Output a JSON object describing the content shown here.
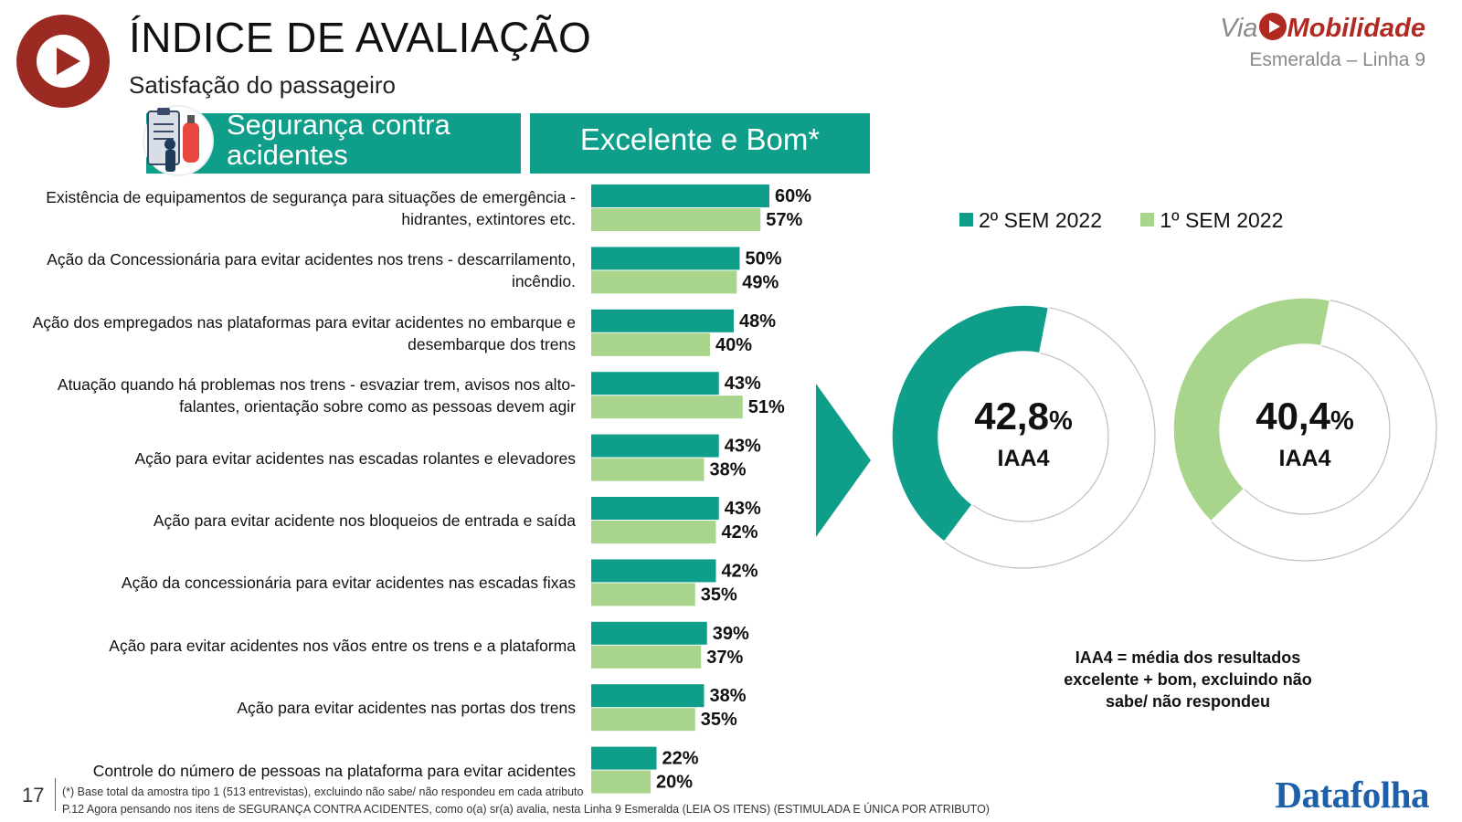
{
  "header": {
    "title": "ÍNDICE DE AVALIAÇÃO",
    "subtitle": "Satisfação do passageiro"
  },
  "brand": {
    "via": "Via",
    "mobilidade": "Mobilidade",
    "line": "Esmeralda – Linha 9"
  },
  "category": {
    "label_line1": "Segurança contra",
    "label_line2": "acidentes",
    "metric": "Excelente e Bom*"
  },
  "colors": {
    "teal": "#0f9e8a",
    "light_green": "#a8d48c",
    "brand_red": "#9b2a22",
    "datafolha_blue": "#1d5fa8"
  },
  "chart_data": [
    {
      "type": "bar",
      "orientation": "horizontal",
      "categories": [
        [
          "Existência de equipamentos de segurança para situações de emergência -",
          "hidrantes, extintores etc."
        ],
        [
          "Ação da Concessionária para evitar acidentes nos trens - descarrilamento,",
          "incêndio."
        ],
        [
          "Ação dos empregados nas plataformas para evitar acidentes no embarque e",
          "desembarque dos trens"
        ],
        [
          "Atuação quando há problemas nos trens - esvaziar trem, avisos nos alto-",
          "falantes, orientação sobre como as pessoas devem agir"
        ],
        [
          "Ação para evitar acidentes nas escadas rolantes e elevadores"
        ],
        [
          "Ação para evitar acidente nos bloqueios de entrada e saída"
        ],
        [
          "Ação da concessionária para evitar acidentes nas escadas fixas"
        ],
        [
          "Ação para evitar acidentes nos vãos entre os trens e a plataforma"
        ],
        [
          "Ação para evitar acidentes nas portas dos trens"
        ],
        [
          "Controle do número de pessoas na plataforma para evitar acidentes"
        ]
      ],
      "series": [
        {
          "name": "2º SEM 2022",
          "color": "#0f9e8a",
          "values": [
            60,
            50,
            48,
            43,
            43,
            43,
            42,
            39,
            38,
            22
          ]
        },
        {
          "name": "1º SEM 2022",
          "color": "#a8d48c",
          "values": [
            57,
            49,
            40,
            51,
            38,
            42,
            35,
            37,
            35,
            20
          ]
        }
      ],
      "value_suffix": "%",
      "legend_position": "top-right"
    },
    {
      "type": "pie",
      "variant": "donut",
      "series_name": "2º SEM 2022",
      "value": 42.8,
      "value_text": "42,8",
      "unit": "%",
      "label": "IAA4",
      "color": "#0f9e8a"
    },
    {
      "type": "pie",
      "variant": "donut",
      "series_name": "1º SEM 2022",
      "value": 40.4,
      "value_text": "40,4",
      "unit": "%",
      "label": "IAA4",
      "color": "#a8d48c"
    }
  ],
  "legend": [
    {
      "label": "2º SEM 2022",
      "color": "#0f9e8a"
    },
    {
      "label": "1º SEM 2022",
      "color": "#a8d48c"
    }
  ],
  "note": "IAA4 = média dos resultados excelente + bom, excluindo não sabe/ não respondeu",
  "footer": {
    "page": "17",
    "line1": "(*) Base total da amostra tipo 1 (513 entrevistas), excluindo não sabe/ não respondeu em cada atributo",
    "line2": "P.12 Agora pensando nos itens de SEGURANÇA CONTRA ACIDENTES, como o(a) sr(a) avalia, nesta Linha 9 Esmeralda (LEIA OS ITENS) (ESTIMULADA E ÚNICA POR ATRIBUTO)",
    "brand": "Datafolha"
  }
}
